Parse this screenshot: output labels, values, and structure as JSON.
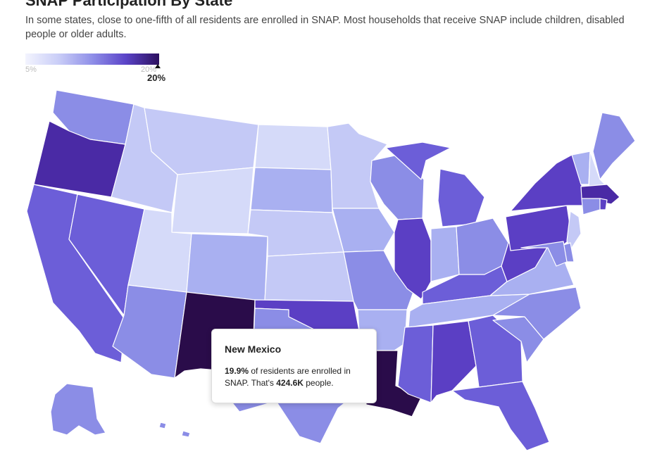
{
  "title": "SNAP Participation By State",
  "subtitle": "In some states, close to one-fifth of all residents are enrolled in SNAP. Most households that receive SNAP include children, disabled people or older adults.",
  "legend": {
    "min_label": "5%",
    "max_label": "20%",
    "current_label": "20%"
  },
  "colors": {
    "lightest": "#d5daf9",
    "light": "#c4c9f6",
    "mid_light": "#a9b0f1",
    "mid": "#8b8de6",
    "mid_dark": "#6c5ed8",
    "dark": "#5b3fc4",
    "darker": "#4a2aa5",
    "darkest": "#2a0c4a"
  },
  "states": [
    {
      "id": "WA",
      "rate": 12
    },
    {
      "id": "OR",
      "rate": 17
    },
    {
      "id": "CA",
      "rate": 13
    },
    {
      "id": "NV",
      "rate": 14
    },
    {
      "id": "ID",
      "rate": 7
    },
    {
      "id": "MT",
      "rate": 8
    },
    {
      "id": "WY",
      "rate": 5
    },
    {
      "id": "UT",
      "rate": 5
    },
    {
      "id": "AZ",
      "rate": 12
    },
    {
      "id": "NM",
      "rate": 19.9
    },
    {
      "id": "CO",
      "rate": 10
    },
    {
      "id": "ND",
      "rate": 6
    },
    {
      "id": "SD",
      "rate": 9
    },
    {
      "id": "NE",
      "rate": 8
    },
    {
      "id": "KS",
      "rate": 7
    },
    {
      "id": "OK",
      "rate": 15
    },
    {
      "id": "TX",
      "rate": 12
    },
    {
      "id": "MN",
      "rate": 8
    },
    {
      "id": "IA",
      "rate": 9
    },
    {
      "id": "MO",
      "rate": 11
    },
    {
      "id": "AR",
      "rate": 9
    },
    {
      "id": "LA",
      "rate": 19
    },
    {
      "id": "WI",
      "rate": 11
    },
    {
      "id": "IL",
      "rate": 15
    },
    {
      "id": "MI",
      "rate": 14
    },
    {
      "id": "IN",
      "rate": 9
    },
    {
      "id": "OH",
      "rate": 12
    },
    {
      "id": "KY",
      "rate": 13
    },
    {
      "id": "TN",
      "rate": 10
    },
    {
      "id": "MS",
      "rate": 14
    },
    {
      "id": "AL",
      "rate": 15
    },
    {
      "id": "GA",
      "rate": 13
    },
    {
      "id": "FL",
      "rate": 13
    },
    {
      "id": "SC",
      "rate": 11
    },
    {
      "id": "NC",
      "rate": 12
    },
    {
      "id": "VA",
      "rate": 10
    },
    {
      "id": "WV",
      "rate": 16
    },
    {
      "id": "PA",
      "rate": 15
    },
    {
      "id": "NY",
      "rate": 15
    },
    {
      "id": "ME",
      "rate": 12
    },
    {
      "id": "VT",
      "rate": 10
    },
    {
      "id": "NH",
      "rate": 6
    },
    {
      "id": "MA",
      "rate": 17
    },
    {
      "id": "CT",
      "rate": 11
    },
    {
      "id": "RI",
      "rate": 15
    },
    {
      "id": "NJ",
      "rate": 8
    },
    {
      "id": "DE",
      "rate": 12
    },
    {
      "id": "MD",
      "rate": 11
    },
    {
      "id": "AK",
      "rate": 11
    },
    {
      "id": "HI",
      "rate": 12
    }
  ],
  "tooltip": {
    "state": "New Mexico",
    "pct": "19.9%",
    "text_1": " of residents are enrolled in SNAP. That's ",
    "people": "424.6K",
    "text_2": " people."
  }
}
